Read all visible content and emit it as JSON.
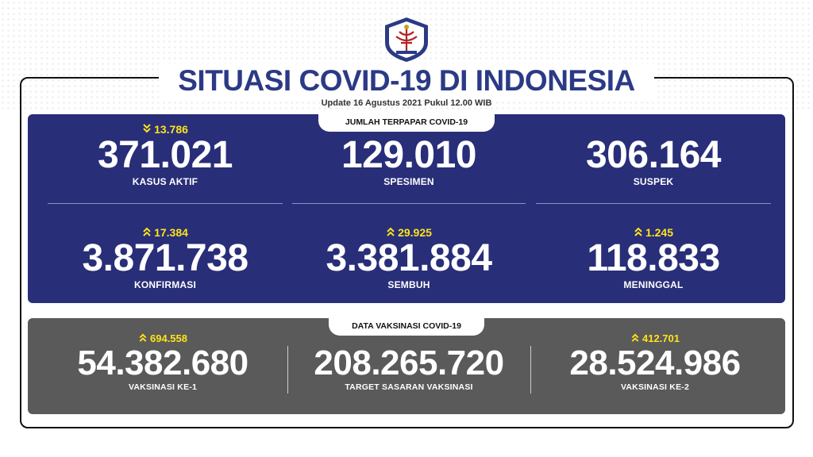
{
  "header": {
    "title": "SITUASI COVID-19 DI INDONESIA",
    "update": "Update 16 Agustus 2021 Pukul 12.00 WIB"
  },
  "colors": {
    "blue_panel": "#282e78",
    "gray_panel": "#5a5a5a",
    "title": "#2b3a85",
    "delta": "#ffe31a"
  },
  "terpapar": {
    "tag": "JUMLAH TERPAPAR COVID-19",
    "kasus_aktif": {
      "delta": "13.786",
      "direction": "down",
      "value": "371.021",
      "label": "KASUS AKTIF"
    },
    "spesimen": {
      "value": "129.010",
      "label": "SPESIMEN"
    },
    "suspek": {
      "value": "306.164",
      "label": "SUSPEK"
    },
    "konfirmasi": {
      "delta": "17.384",
      "direction": "up",
      "value": "3.871.738",
      "label": "KONFIRMASI"
    },
    "sembuh": {
      "delta": "29.925",
      "direction": "up",
      "value": "3.381.884",
      "label": "SEMBUH"
    },
    "meninggal": {
      "delta": "1.245",
      "direction": "up",
      "value": "118.833",
      "label": "MENINGGAL"
    }
  },
  "vaksinasi": {
    "tag": "DATA VAKSINASI COVID-19",
    "ke1": {
      "delta": "694.558",
      "direction": "up",
      "value": "54.382.680",
      "label": "VAKSINASI KE-1"
    },
    "target": {
      "value": "208.265.720",
      "label": "TARGET SASARAN VAKSINASI"
    },
    "ke2": {
      "delta": "412.701",
      "direction": "up",
      "value": "28.524.986",
      "label": "VAKSINASI KE-2"
    }
  }
}
